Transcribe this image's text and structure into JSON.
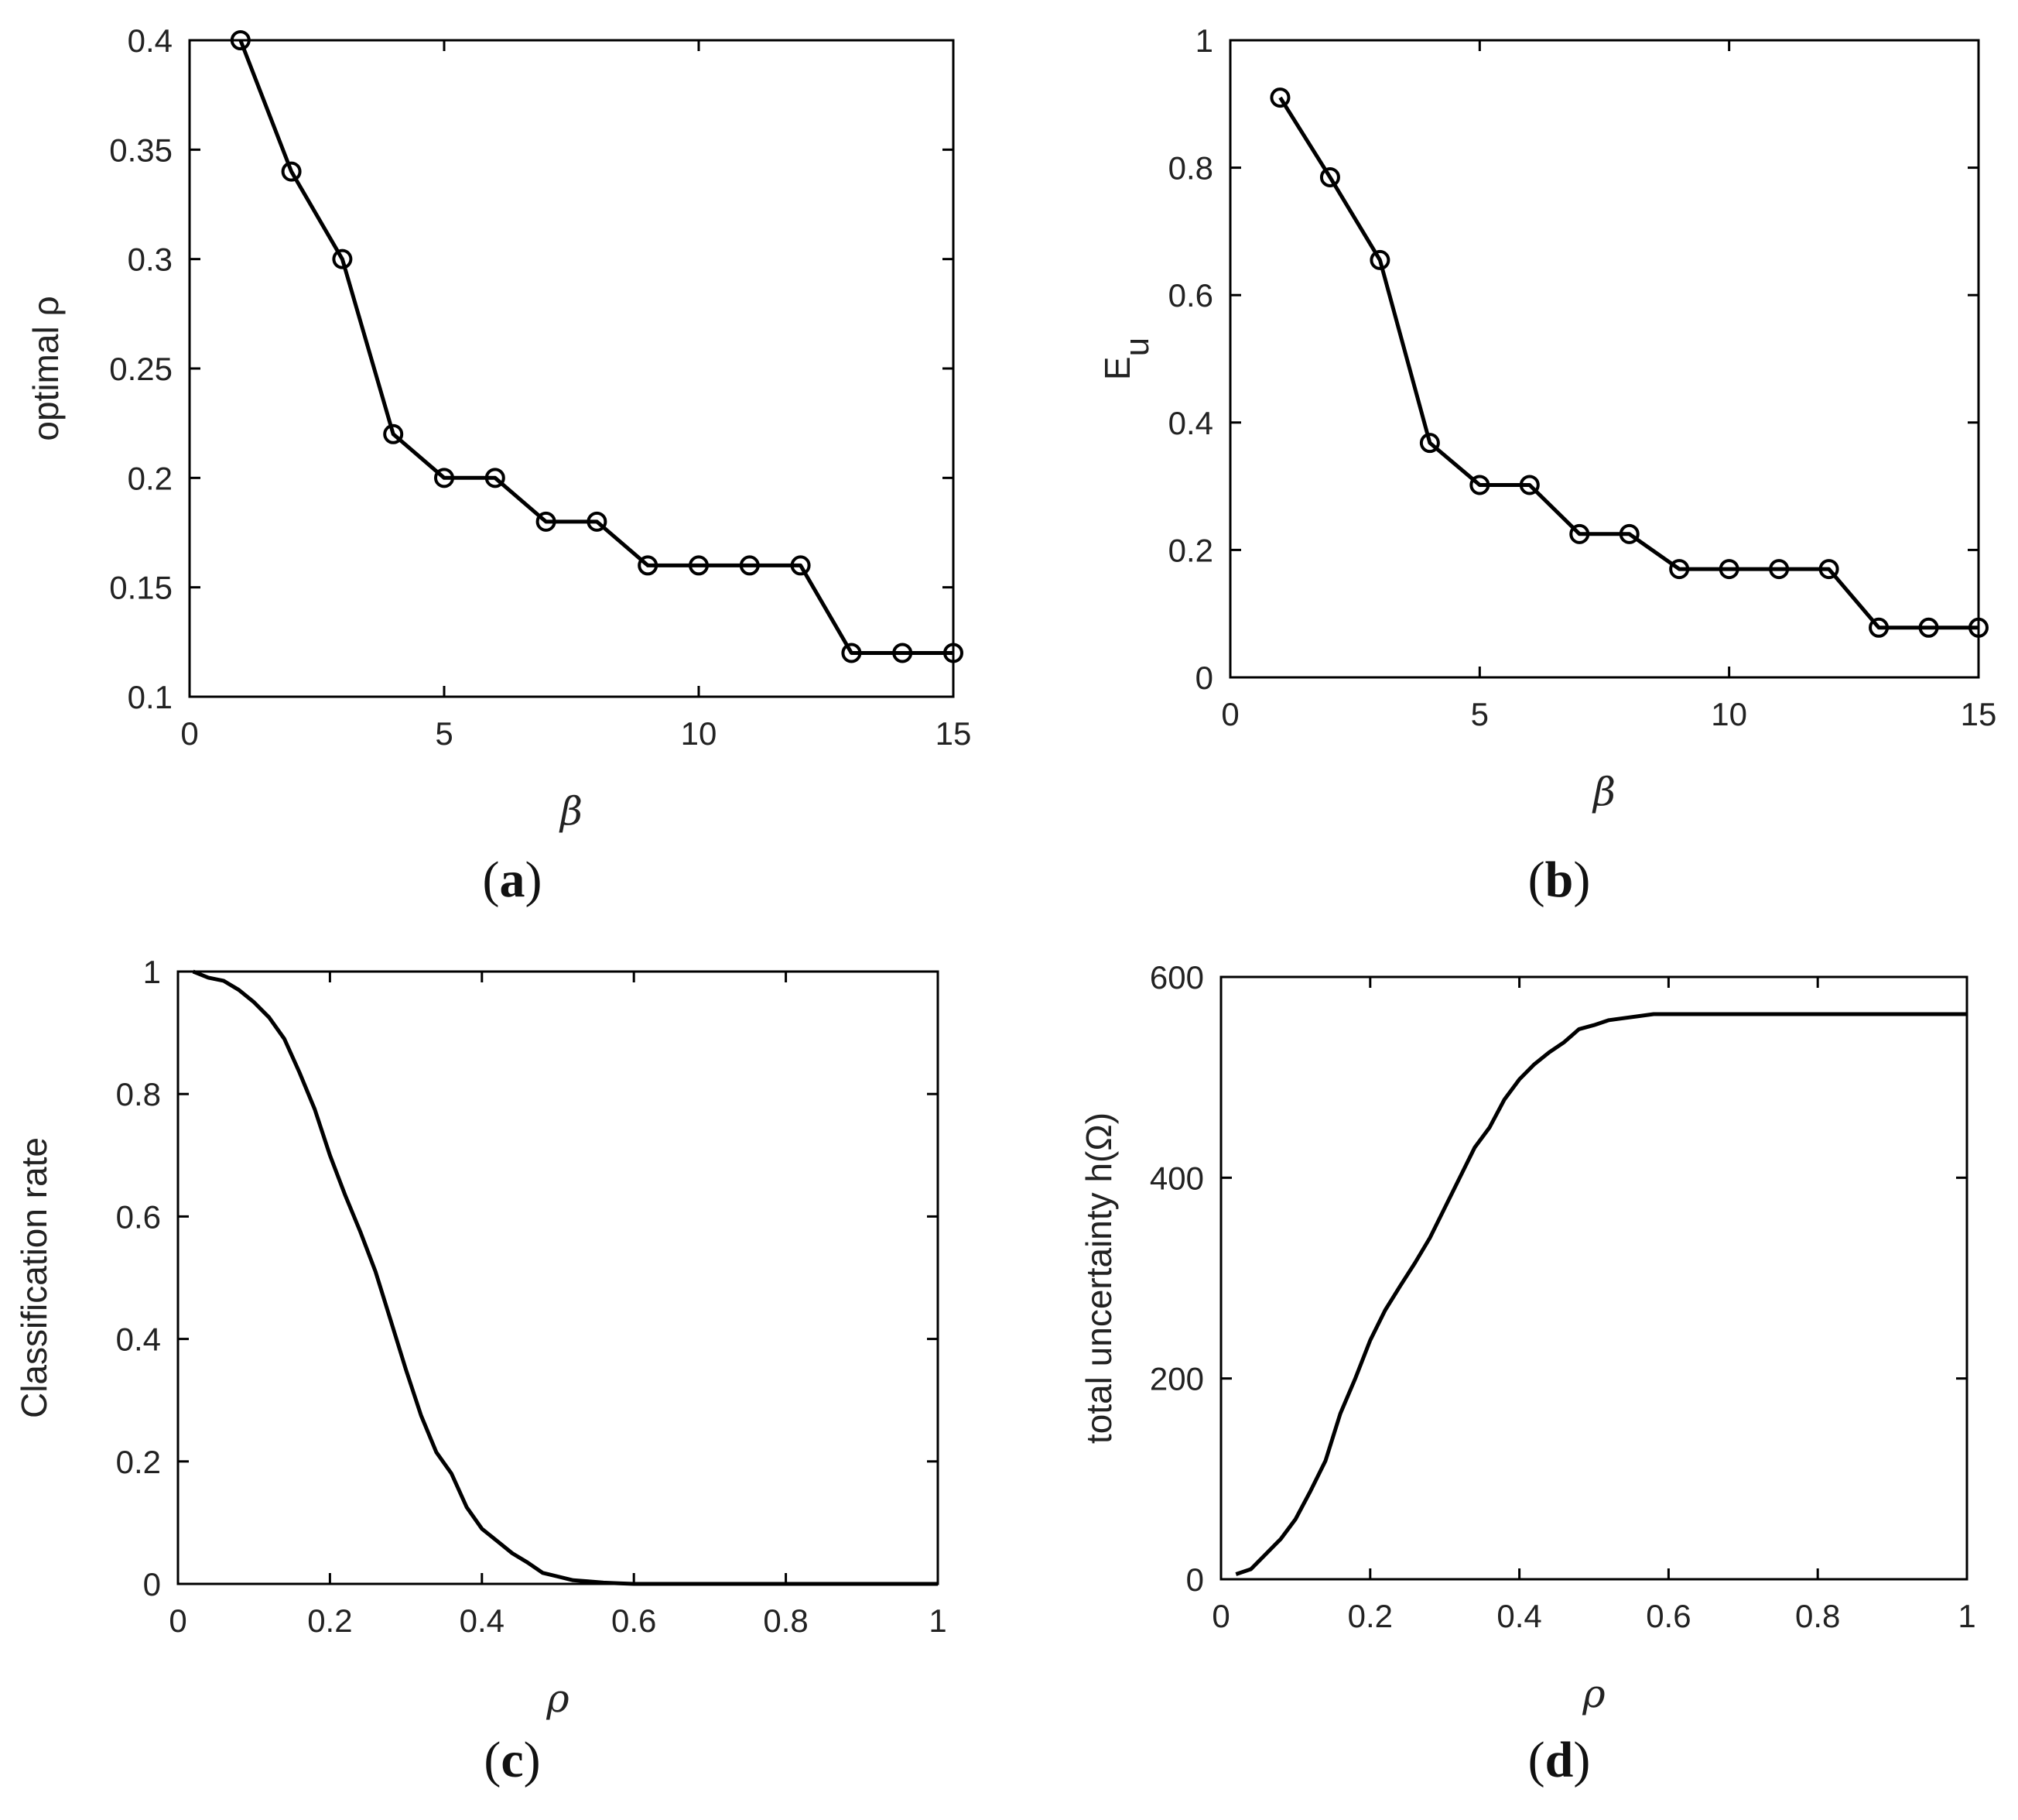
{
  "chart_data": [
    {
      "id": "a",
      "type": "line",
      "panel_label": "a",
      "xlabel": "β",
      "ylabel": "optimal ρ",
      "xlim": [
        0,
        15
      ],
      "ylim": [
        0.1,
        0.4
      ],
      "xticks": [
        0,
        5,
        10,
        15
      ],
      "xtick_labels": [
        "0",
        "5",
        "10",
        "15"
      ],
      "yticks": [
        0.1,
        0.15,
        0.2,
        0.25,
        0.3,
        0.35,
        0.4
      ],
      "ytick_labels": [
        "0.1",
        "0.15",
        "0.2",
        "0.25",
        "0.3",
        "0.35",
        "0.4"
      ],
      "markers": true,
      "series": [
        {
          "name": "optimal ρ",
          "x": [
            1,
            2,
            3,
            4,
            5,
            6,
            7,
            8,
            9,
            10,
            11,
            12,
            13,
            14,
            15
          ],
          "values": [
            0.4,
            0.34,
            0.3,
            0.22,
            0.2,
            0.2,
            0.18,
            0.18,
            0.16,
            0.16,
            0.16,
            0.16,
            0.12,
            0.12,
            0.12
          ]
        }
      ]
    },
    {
      "id": "b",
      "type": "line",
      "panel_label": "b",
      "xlabel": "β",
      "ylabel": "E",
      "ylabel_sub": "u",
      "xlim": [
        0,
        15
      ],
      "ylim": [
        0,
        1
      ],
      "xticks": [
        0,
        5,
        10,
        15
      ],
      "xtick_labels": [
        "0",
        "5",
        "10",
        "15"
      ],
      "yticks": [
        0,
        0.2,
        0.4,
        0.6,
        0.8,
        1
      ],
      "ytick_labels": [
        "0",
        "0.2",
        "0.4",
        "0.6",
        "0.8",
        "1"
      ],
      "markers": true,
      "series": [
        {
          "name": "Eu",
          "x": [
            1,
            2,
            3,
            4,
            5,
            6,
            7,
            8,
            9,
            10,
            11,
            12,
            13,
            14,
            15
          ],
          "values": [
            0.91,
            0.785,
            0.655,
            0.368,
            0.302,
            0.302,
            0.225,
            0.225,
            0.17,
            0.17,
            0.17,
            0.17,
            0.078,
            0.078,
            0.078
          ]
        }
      ]
    },
    {
      "id": "c",
      "type": "line",
      "panel_label": "c",
      "xlabel": "ρ",
      "ylabel": "Classification rate",
      "xlim": [
        0,
        1
      ],
      "ylim": [
        0,
        1
      ],
      "xticks": [
        0,
        0.2,
        0.4,
        0.6,
        0.8,
        1
      ],
      "xtick_labels": [
        "0",
        "0.2",
        "0.4",
        "0.6",
        "0.8",
        "1"
      ],
      "yticks": [
        0,
        0.2,
        0.4,
        0.6,
        0.8,
        1
      ],
      "ytick_labels": [
        "0",
        "0.2",
        "0.4",
        "0.6",
        "0.8",
        "1"
      ],
      "markers": false,
      "series": [
        {
          "name": "Classification rate",
          "x": [
            0.02,
            0.04,
            0.06,
            0.08,
            0.1,
            0.12,
            0.14,
            0.16,
            0.18,
            0.2,
            0.22,
            0.24,
            0.26,
            0.28,
            0.3,
            0.32,
            0.34,
            0.36,
            0.38,
            0.4,
            0.42,
            0.44,
            0.46,
            0.48,
            0.5,
            0.52,
            0.54,
            0.56,
            0.58,
            0.6,
            0.65,
            0.7,
            0.75,
            0.8,
            0.85,
            0.9,
            0.95,
            1.0
          ],
          "values": [
            1.0,
            0.99,
            0.985,
            0.97,
            0.95,
            0.925,
            0.89,
            0.835,
            0.775,
            0.7,
            0.635,
            0.575,
            0.51,
            0.43,
            0.35,
            0.275,
            0.215,
            0.18,
            0.125,
            0.09,
            0.07,
            0.05,
            0.035,
            0.018,
            0.012,
            0.006,
            0.004,
            0.002,
            0.001,
            0.0,
            0.0,
            0.0,
            0.0,
            0.0,
            0.0,
            0.0,
            0.0,
            0.0
          ]
        }
      ]
    },
    {
      "id": "d",
      "type": "line",
      "panel_label": "d",
      "xlabel": "ρ",
      "ylabel": "total uncertainty h(Ω)",
      "xlim": [
        0,
        1
      ],
      "ylim": [
        0,
        600
      ],
      "xticks": [
        0,
        0.2,
        0.4,
        0.6,
        0.8,
        1
      ],
      "xtick_labels": [
        "0",
        "0.2",
        "0.4",
        "0.6",
        "0.8",
        "1"
      ],
      "yticks": [
        0,
        200,
        400,
        600
      ],
      "ytick_labels": [
        "0",
        "200",
        "400",
        "600"
      ],
      "markers": false,
      "series": [
        {
          "name": "total uncertainty",
          "x": [
            0.02,
            0.04,
            0.06,
            0.08,
            0.1,
            0.12,
            0.14,
            0.16,
            0.18,
            0.2,
            0.22,
            0.24,
            0.26,
            0.28,
            0.3,
            0.32,
            0.34,
            0.36,
            0.38,
            0.4,
            0.42,
            0.44,
            0.46,
            0.48,
            0.5,
            0.52,
            0.54,
            0.56,
            0.58,
            0.6,
            0.65,
            0.7,
            0.75,
            0.8,
            0.85,
            0.9,
            0.95,
            1.0
          ],
          "values": [
            5,
            10,
            25,
            40,
            60,
            88,
            118,
            165,
            200,
            238,
            268,
            292,
            315,
            340,
            370,
            400,
            430,
            450,
            478,
            498,
            513,
            525,
            535,
            548,
            552,
            557,
            559,
            561,
            563,
            563,
            563,
            563,
            563,
            563,
            563,
            563,
            563,
            563
          ]
        }
      ]
    }
  ]
}
